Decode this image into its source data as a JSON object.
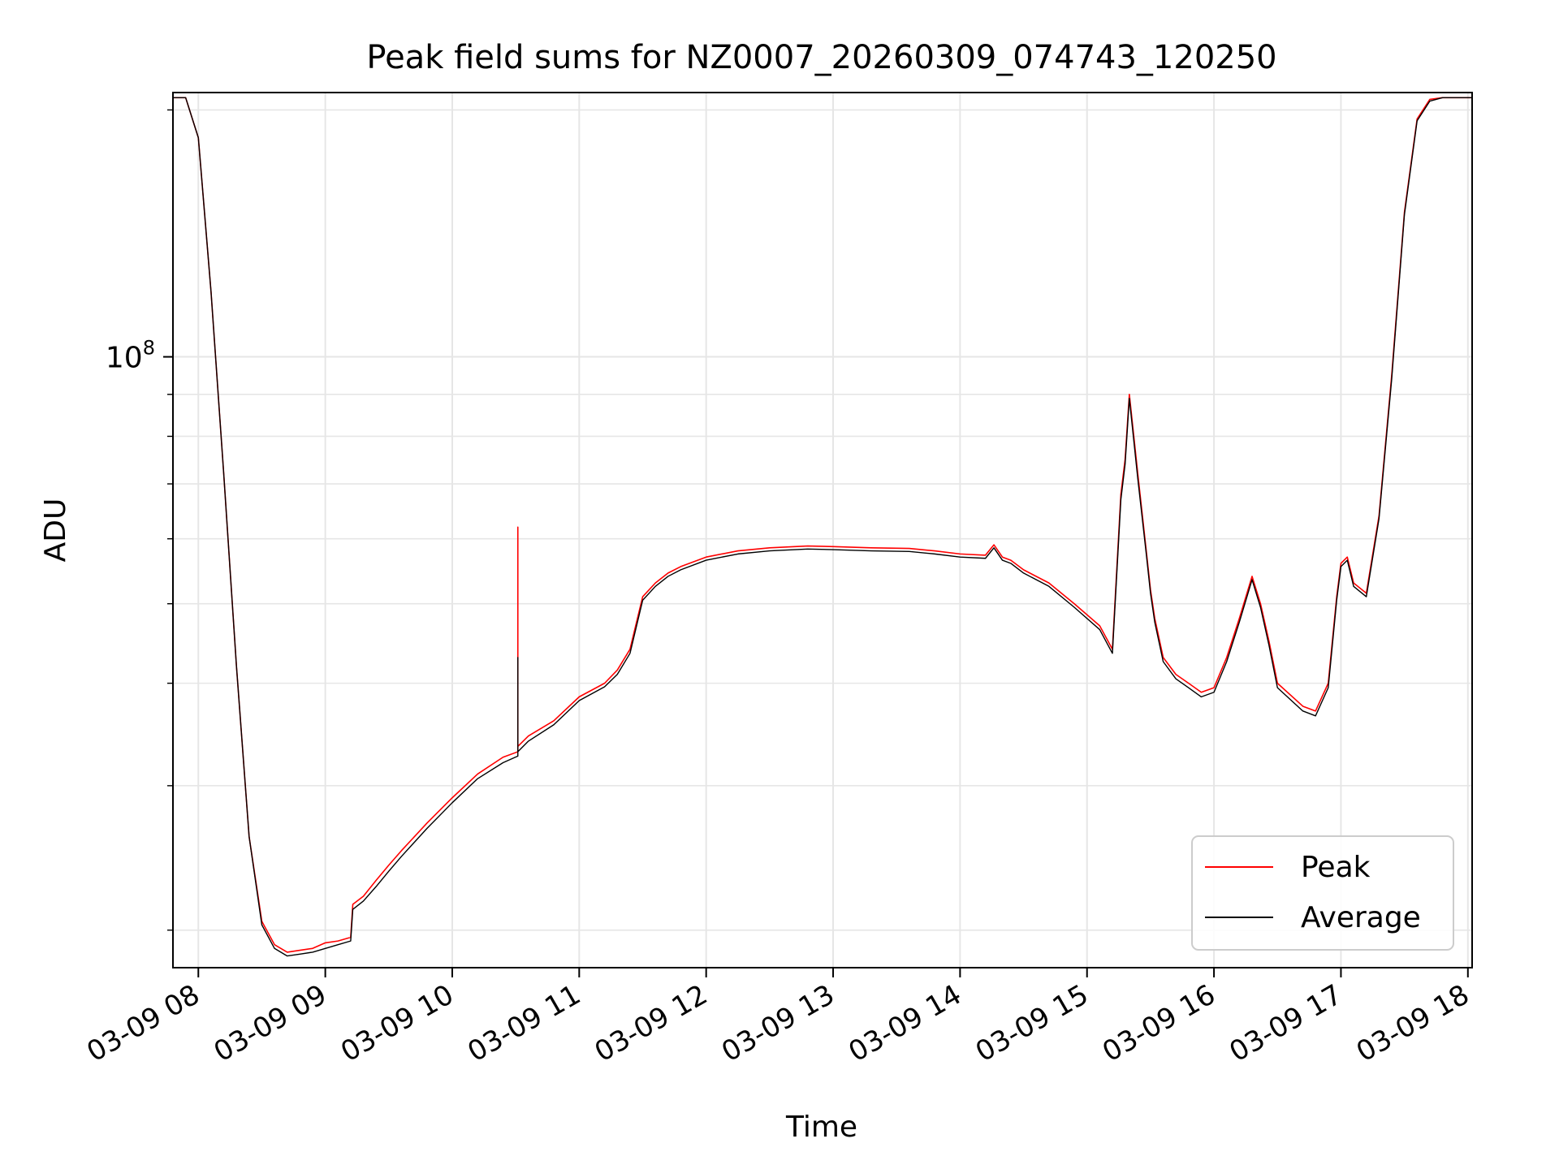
{
  "chart_data": {
    "type": "line",
    "title": "Peak field sums for NZ0007_20260309_074743_120250",
    "xlabel": "Time",
    "ylabel": "ADU",
    "y_scale": "log",
    "ylim": [
      18000000,
      210000000
    ],
    "xlim": [
      "03-09 07:48",
      "03-09 18:02"
    ],
    "x_ticks": [
      "03-09 08",
      "03-09 09",
      "03-09 10",
      "03-09 11",
      "03-09 12",
      "03-09 13",
      "03-09 14",
      "03-09 15",
      "03-09 16",
      "03-09 17",
      "03-09 18"
    ],
    "y_tick_labels": [
      {
        "value": 100000000,
        "base": "10",
        "exp": "8"
      }
    ],
    "grid": true,
    "legend": "bottom-right",
    "series": [
      {
        "name": "Peak",
        "color": "#ff0000",
        "x": [
          "03-09 07:48",
          "03-09 07:54",
          "03-09 08:00",
          "03-09 08:06",
          "03-09 08:12",
          "03-09 08:18",
          "03-09 08:24",
          "03-09 08:30",
          "03-09 08:36",
          "03-09 08:42",
          "03-09 08:48",
          "03-09 08:54",
          "03-09 09:00",
          "03-09 09:06",
          "03-09 09:12",
          "03-09 09:13",
          "03-09 09:18",
          "03-09 09:24",
          "03-09 09:30",
          "03-09 09:36",
          "03-09 09:48",
          "03-09 10:00",
          "03-09 10:12",
          "03-09 10:24",
          "03-09 10:31",
          "03-09 10:31",
          "03-09 10:31",
          "03-09 10:36",
          "03-09 10:48",
          "03-09 11:00",
          "03-09 11:12",
          "03-09 11:18",
          "03-09 11:24",
          "03-09 11:30",
          "03-09 11:36",
          "03-09 11:42",
          "03-09 11:48",
          "03-09 12:00",
          "03-09 12:15",
          "03-09 12:30",
          "03-09 12:48",
          "03-09 13:00",
          "03-09 13:18",
          "03-09 13:36",
          "03-09 13:48",
          "03-09 14:00",
          "03-09 14:12",
          "03-09 14:16",
          "03-09 14:20",
          "03-09 14:24",
          "03-09 14:30",
          "03-09 14:42",
          "03-09 14:54",
          "03-09 15:06",
          "03-09 15:12",
          "03-09 15:16",
          "03-09 15:18",
          "03-09 15:20",
          "03-09 15:24",
          "03-09 15:28",
          "03-09 15:30",
          "03-09 15:32",
          "03-09 15:36",
          "03-09 15:42",
          "03-09 15:48",
          "03-09 15:54",
          "03-09 16:00",
          "03-09 16:06",
          "03-09 16:12",
          "03-09 16:18",
          "03-09 16:22",
          "03-09 16:26",
          "03-09 16:30",
          "03-09 16:42",
          "03-09 16:48",
          "03-09 16:54",
          "03-09 16:58",
          "03-09 17:00",
          "03-09 17:03",
          "03-09 17:06",
          "03-09 17:12",
          "03-09 17:18",
          "03-09 17:24",
          "03-09 17:30",
          "03-09 17:36",
          "03-09 17:42",
          "03-09 17:48",
          "03-09 17:54",
          "03-09 18:02"
        ],
        "values": [
          207000000,
          207000000,
          185000000,
          120000000,
          72000000,
          42000000,
          26000000,
          20500000,
          19200000,
          18800000,
          18900000,
          19000000,
          19300000,
          19400000,
          19600000,
          21500000,
          22000000,
          23000000,
          24000000,
          25000000,
          27000000,
          29000000,
          31000000,
          32500000,
          33000000,
          62000000,
          33500000,
          34500000,
          36000000,
          38500000,
          40000000,
          41500000,
          44000000,
          51000000,
          53000000,
          54500000,
          55500000,
          57000000,
          58000000,
          58500000,
          58800000,
          58700000,
          58500000,
          58400000,
          58000000,
          57500000,
          57300000,
          59000000,
          57000000,
          56500000,
          55000000,
          53000000,
          50000000,
          47000000,
          44000000,
          68000000,
          75000000,
          90000000,
          72000000,
          58000000,
          52000000,
          48000000,
          43000000,
          41000000,
          40000000,
          39000000,
          39500000,
          43000000,
          48000000,
          54000000,
          50000000,
          45000000,
          40000000,
          37500000,
          37000000,
          40000000,
          51000000,
          56000000,
          57000000,
          53000000,
          51500000,
          64000000,
          95000000,
          150000000,
          195000000,
          206000000,
          207000000,
          207000000,
          207000000
        ]
      },
      {
        "name": "Average",
        "color": "#000000",
        "x": [
          "03-09 07:48",
          "03-09 07:54",
          "03-09 08:00",
          "03-09 08:06",
          "03-09 08:12",
          "03-09 08:18",
          "03-09 08:24",
          "03-09 08:30",
          "03-09 08:36",
          "03-09 08:42",
          "03-09 08:48",
          "03-09 08:54",
          "03-09 09:00",
          "03-09 09:06",
          "03-09 09:12",
          "03-09 09:13",
          "03-09 09:18",
          "03-09 09:24",
          "03-09 09:30",
          "03-09 09:36",
          "03-09 09:48",
          "03-09 10:00",
          "03-09 10:12",
          "03-09 10:24",
          "03-09 10:31",
          "03-09 10:31",
          "03-09 10:31",
          "03-09 10:36",
          "03-09 10:48",
          "03-09 11:00",
          "03-09 11:12",
          "03-09 11:18",
          "03-09 11:24",
          "03-09 11:30",
          "03-09 11:36",
          "03-09 11:42",
          "03-09 11:48",
          "03-09 12:00",
          "03-09 12:15",
          "03-09 12:30",
          "03-09 12:48",
          "03-09 13:00",
          "03-09 13:18",
          "03-09 13:36",
          "03-09 13:48",
          "03-09 14:00",
          "03-09 14:12",
          "03-09 14:16",
          "03-09 14:20",
          "03-09 14:24",
          "03-09 14:30",
          "03-09 14:42",
          "03-09 14:54",
          "03-09 15:06",
          "03-09 15:12",
          "03-09 15:16",
          "03-09 15:18",
          "03-09 15:20",
          "03-09 15:24",
          "03-09 15:28",
          "03-09 15:30",
          "03-09 15:32",
          "03-09 15:36",
          "03-09 15:42",
          "03-09 15:48",
          "03-09 15:54",
          "03-09 16:00",
          "03-09 16:06",
          "03-09 16:12",
          "03-09 16:18",
          "03-09 16:22",
          "03-09 16:26",
          "03-09 16:30",
          "03-09 16:42",
          "03-09 16:48",
          "03-09 16:54",
          "03-09 16:58",
          "03-09 17:00",
          "03-09 17:03",
          "03-09 17:06",
          "03-09 17:12",
          "03-09 17:18",
          "03-09 17:24",
          "03-09 17:30",
          "03-09 17:36",
          "03-09 17:42",
          "03-09 17:48",
          "03-09 17:54",
          "03-09 18:02"
        ],
        "values": [
          207000000,
          207000000,
          185000000,
          120000000,
          72000000,
          42000000,
          26000000,
          20300000,
          19000000,
          18600000,
          18700000,
          18800000,
          19000000,
          19200000,
          19400000,
          21200000,
          21700000,
          22600000,
          23600000,
          24600000,
          26600000,
          28600000,
          30600000,
          32000000,
          32600000,
          43000000,
          33000000,
          34000000,
          35600000,
          38100000,
          39600000,
          41000000,
          43500000,
          50500000,
          52500000,
          54000000,
          55000000,
          56500000,
          57500000,
          58000000,
          58300000,
          58200000,
          58000000,
          57900000,
          57500000,
          57000000,
          56800000,
          58500000,
          56500000,
          56000000,
          54500000,
          52500000,
          49500000,
          46500000,
          43500000,
          67000000,
          74000000,
          89000000,
          71000000,
          57500000,
          51500000,
          47500000,
          42500000,
          40500000,
          39500000,
          38500000,
          39000000,
          42500000,
          47500000,
          53500000,
          49500000,
          44500000,
          39500000,
          37000000,
          36500000,
          39500000,
          50500000,
          55500000,
          56500000,
          52500000,
          51000000,
          63500000,
          94000000,
          149000000,
          194000000,
          205000000,
          207000000,
          207000000,
          207000000
        ]
      }
    ]
  }
}
